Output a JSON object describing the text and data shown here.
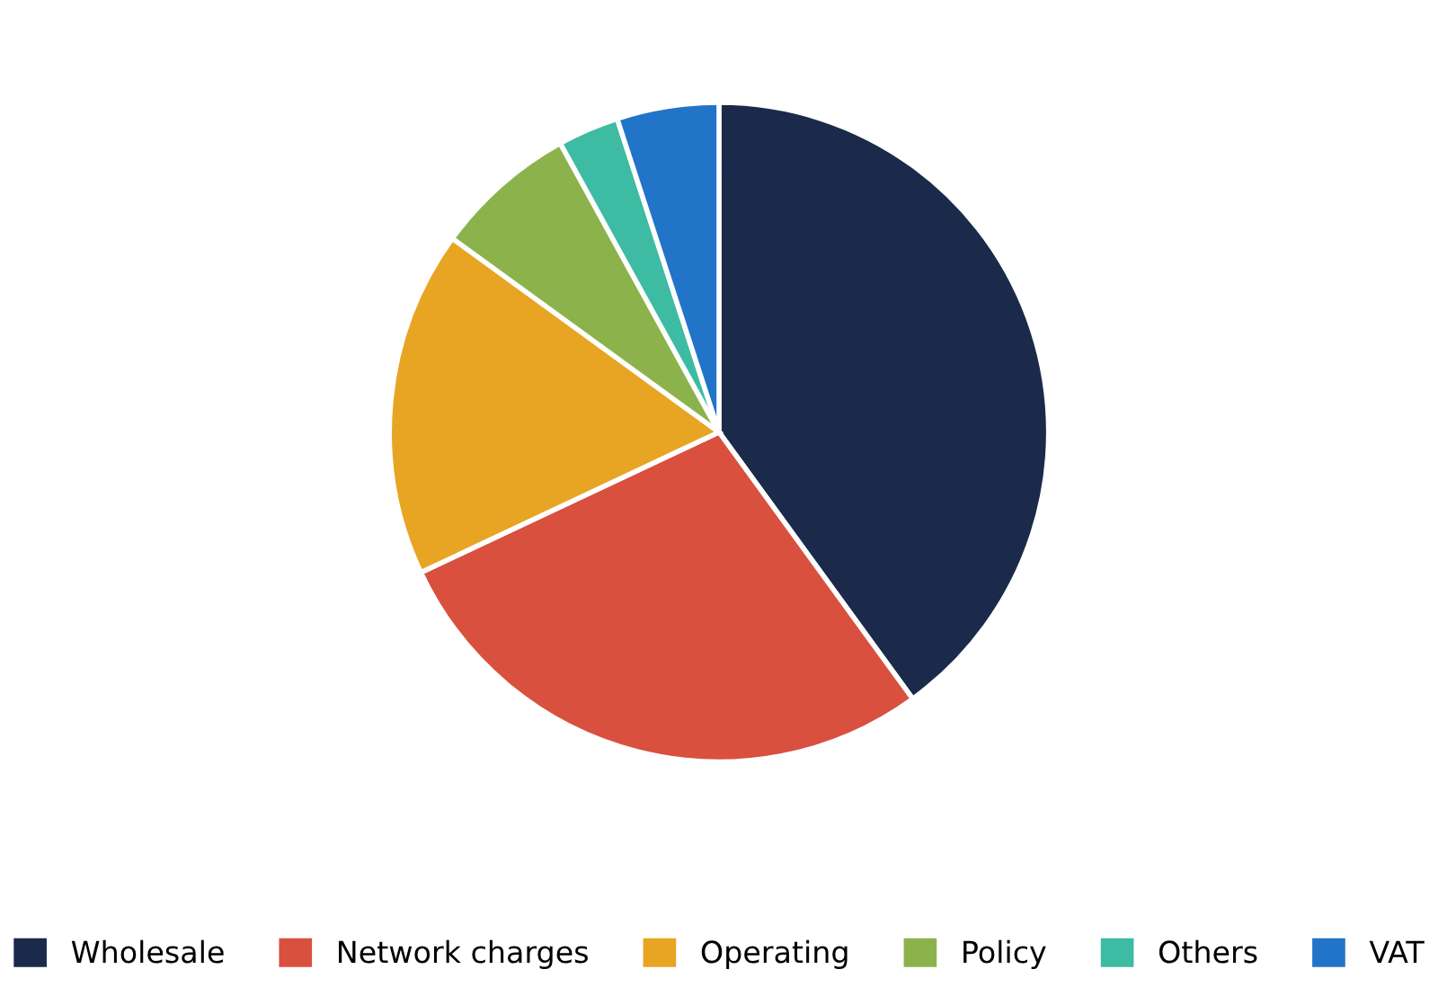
{
  "chart_data": {
    "type": "pie",
    "categories": [
      "Wholesale",
      "Network charges",
      "Operating",
      "Policy",
      "Others",
      "VAT"
    ],
    "values": [
      40,
      28,
      17,
      7,
      3,
      5
    ],
    "colors": [
      "#1b2a4a",
      "#d9503f",
      "#e8a423",
      "#8cb34b",
      "#3dbba3",
      "#2274c9"
    ],
    "legend": "bottom"
  }
}
